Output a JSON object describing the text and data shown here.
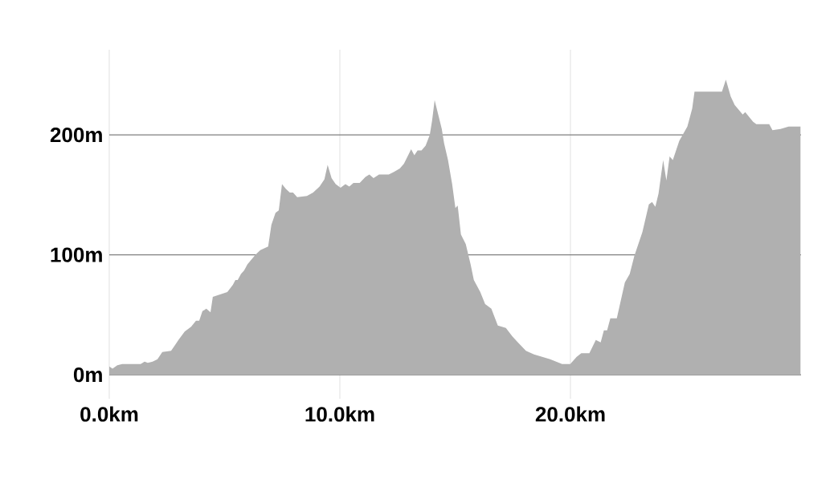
{
  "chart_data": {
    "type": "area",
    "color": "#b0b0b0",
    "x": [
      0,
      0.14,
      0.35,
      0.56,
      1.36,
      1.53,
      1.67,
      1.88,
      2.09,
      2.3,
      2.68,
      2.86,
      3.0,
      3.27,
      3.55,
      3.76,
      3.9,
      4.04,
      4.21,
      4.39,
      4.49,
      5.12,
      5.36,
      5.47,
      5.57,
      5.71,
      5.85,
      5.99,
      6.34,
      6.55,
      6.89,
      7.03,
      7.21,
      7.35,
      7.49,
      7.66,
      7.83,
      7.97,
      8.15,
      8.57,
      8.84,
      9.12,
      9.33,
      9.47,
      9.64,
      9.82,
      10.03,
      10.24,
      10.41,
      10.59,
      10.86,
      11.11,
      11.28,
      11.46,
      11.7,
      12.12,
      12.33,
      12.6,
      12.78,
      13.09,
      13.23,
      13.37,
      13.54,
      13.72,
      13.9,
      14.0,
      14.11,
      14.42,
      14.52,
      14.69,
      14.87,
      15.01,
      15.11,
      15.25,
      15.46,
      15.67,
      15.81,
      16.09,
      16.3,
      16.57,
      16.85,
      17.2,
      17.48,
      17.72,
      18.07,
      18.42,
      18.77,
      19.12,
      19.64,
      19.99,
      20.27,
      20.47,
      20.82,
      21.1,
      21.31,
      21.45,
      21.59,
      21.73,
      22.01,
      22.36,
      22.57,
      22.77,
      23.12,
      23.4,
      23.54,
      23.68,
      23.82,
      24.02,
      24.16,
      24.3,
      24.44,
      24.72,
      25.07,
      25.28,
      25.38,
      26.57,
      26.74,
      26.95,
      27.12,
      27.47,
      27.58,
      27.92,
      28.06,
      28.62,
      28.76,
      29.11,
      29.46,
      29.98
    ],
    "values": [
      7,
      5,
      8,
      9,
      9,
      11,
      10,
      11,
      13,
      19,
      20,
      25,
      29,
      36,
      40,
      45,
      45,
      53,
      55,
      52,
      65,
      69,
      75,
      79,
      79,
      84,
      87,
      92,
      100,
      104,
      107,
      125,
      135,
      137,
      159,
      155,
      152,
      152,
      148,
      149,
      152,
      157,
      163,
      175,
      164,
      159,
      156,
      159,
      157,
      160,
      160,
      165,
      167,
      164,
      167,
      167,
      169,
      172,
      176,
      188,
      183,
      187,
      187,
      191,
      200,
      212,
      229,
      205,
      193,
      179,
      159,
      139,
      141,
      117,
      109,
      92,
      79,
      69,
      59,
      55,
      41,
      39,
      32,
      27,
      20,
      17,
      15,
      13,
      9,
      9,
      15,
      18,
      18,
      29,
      27,
      37,
      37,
      47,
      47,
      77,
      84,
      99,
      119,
      142,
      144,
      140,
      151,
      179,
      162,
      182,
      179,
      195,
      207,
      222,
      236,
      236,
      246,
      232,
      225,
      217,
      219,
      211,
      209,
      209,
      204,
      205,
      207,
      207
    ],
    "xlim": [
      0,
      30
    ],
    "ylim": [
      -20,
      271
    ],
    "xticks": [
      {
        "value": 0,
        "label": "0.0km"
      },
      {
        "value": 10,
        "label": "10.0km"
      },
      {
        "value": 20,
        "label": "20.0km"
      }
    ],
    "yticks": [
      {
        "value": 0,
        "label": "0m"
      },
      {
        "value": 100,
        "label": "100m"
      },
      {
        "value": 200,
        "label": "200m"
      }
    ],
    "grid": true
  }
}
